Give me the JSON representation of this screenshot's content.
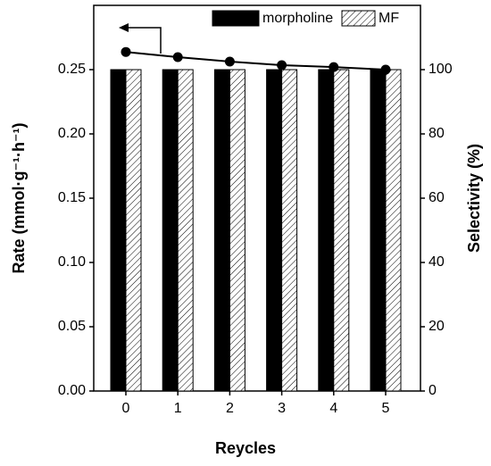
{
  "chart_data": {
    "type": "bar",
    "x_label": "Reycles",
    "y_label": "Rate (mmol·g⁻¹·h⁻¹)",
    "y2_label": "Selectivity (%)",
    "categories": [
      "0",
      "1",
      "2",
      "3",
      "4",
      "5"
    ],
    "series": [
      {
        "name": "morpholine",
        "color": "#000000",
        "values": [
          0.25,
          0.25,
          0.25,
          0.25,
          0.25,
          0.25
        ]
      },
      {
        "name": "MF",
        "color": "#000000",
        "pattern": "hatch",
        "values": [
          0.25,
          0.25,
          0.25,
          0.25,
          0.25,
          0.25
        ]
      },
      {
        "type": "line",
        "axis": "y2",
        "color": "#000000",
        "values": [
          105.5,
          103.9,
          102.5,
          101.4,
          100.8,
          100
        ]
      }
    ],
    "ylim": [
      0,
      0.3
    ],
    "yticks": [
      {
        "value": 0,
        "label": "0.00"
      },
      {
        "value": 0.05,
        "label": "0.05"
      },
      {
        "value": 0.1,
        "label": "0.10"
      },
      {
        "value": 0.15,
        "label": "0.15"
      },
      {
        "value": 0.2,
        "label": "0.20"
      },
      {
        "value": 0.25,
        "label": "0.25"
      }
    ],
    "y2lim": [
      0,
      120
    ],
    "y2ticks": [
      0,
      20,
      40,
      60,
      80,
      100
    ],
    "legend": "top-right"
  }
}
